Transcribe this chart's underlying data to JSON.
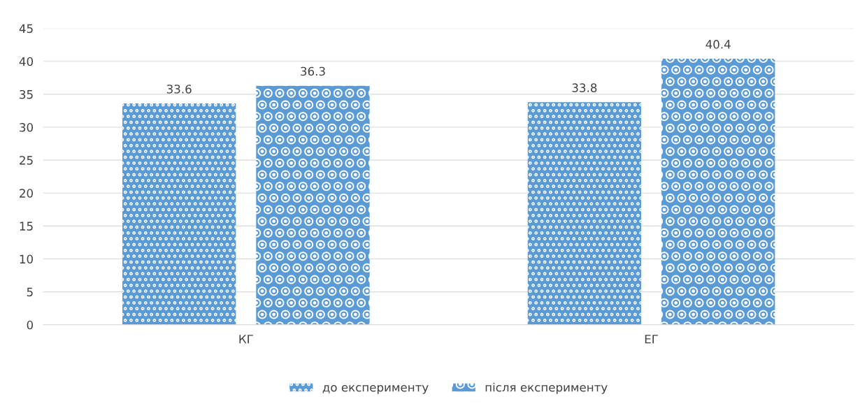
{
  "chart_data": {
    "type": "bar",
    "categories": [
      "КГ",
      "ЕГ"
    ],
    "series": [
      {
        "name": "до експерименту",
        "color": "#5b9bd5",
        "values": [
          33.6,
          33.8
        ]
      },
      {
        "name": "після експерименту",
        "color": "#5b9bd5",
        "values": [
          36.3,
          40.4
        ]
      }
    ],
    "ylim": [
      0,
      45
    ],
    "yticks": [
      0,
      5,
      10,
      15,
      20,
      25,
      30,
      35,
      40,
      45
    ],
    "grid": "y",
    "legend": "bottom",
    "data_labels": true
  }
}
